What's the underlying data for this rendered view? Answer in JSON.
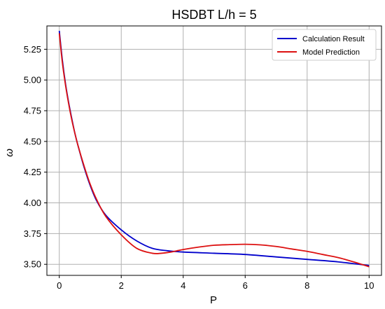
{
  "chart_data": {
    "type": "line",
    "title": "HSDBT L/h = 5",
    "xlabel": "P",
    "ylabel": "ω",
    "xlim": [
      -0.4,
      10.4
    ],
    "ylim": [
      3.41,
      5.44
    ],
    "xticks": [
      0,
      2,
      4,
      6,
      8,
      10
    ],
    "xtick_labels": [
      "0",
      "2",
      "4",
      "6",
      "8",
      "10"
    ],
    "yticks": [
      3.5,
      3.75,
      4.0,
      4.25,
      4.5,
      4.75,
      5.0,
      5.25
    ],
    "ytick_labels": [
      "3.50",
      "3.75",
      "4.00",
      "4.25",
      "4.50",
      "4.75",
      "5.00",
      "5.25"
    ],
    "grid": true,
    "legend": "top-right",
    "series": [
      {
        "name": "Calculation Result",
        "color": "#0000cc",
        "x": [
          0,
          0.1,
          0.2,
          0.3,
          0.4,
          0.5,
          0.6,
          0.8,
          1.0,
          1.2,
          1.5,
          2.0,
          2.5,
          3.0,
          3.5,
          4.0,
          5.0,
          6.0,
          7.0,
          8.0,
          9.0,
          10.0
        ],
        "y": [
          5.4,
          5.16,
          4.97,
          4.82,
          4.69,
          4.57,
          4.47,
          4.29,
          4.14,
          4.02,
          3.9,
          3.78,
          3.69,
          3.63,
          3.61,
          3.6,
          3.59,
          3.58,
          3.56,
          3.54,
          3.52,
          3.49
        ]
      },
      {
        "name": "Model Prediction",
        "color": "#dd1111",
        "x": [
          0,
          0.1,
          0.2,
          0.3,
          0.4,
          0.5,
          0.6,
          0.8,
          1.0,
          1.2,
          1.5,
          2.0,
          2.5,
          3.0,
          3.3,
          3.6,
          4.0,
          4.5,
          5.0,
          5.5,
          6.0,
          6.5,
          7.0,
          7.5,
          8.0,
          8.5,
          9.0,
          9.5,
          10.0
        ],
        "y": [
          5.38,
          5.14,
          4.96,
          4.81,
          4.68,
          4.57,
          4.47,
          4.3,
          4.15,
          4.03,
          3.89,
          3.74,
          3.63,
          3.59,
          3.59,
          3.6,
          3.62,
          3.64,
          3.655,
          3.66,
          3.663,
          3.658,
          3.645,
          3.625,
          3.605,
          3.58,
          3.555,
          3.52,
          3.48
        ]
      }
    ]
  }
}
